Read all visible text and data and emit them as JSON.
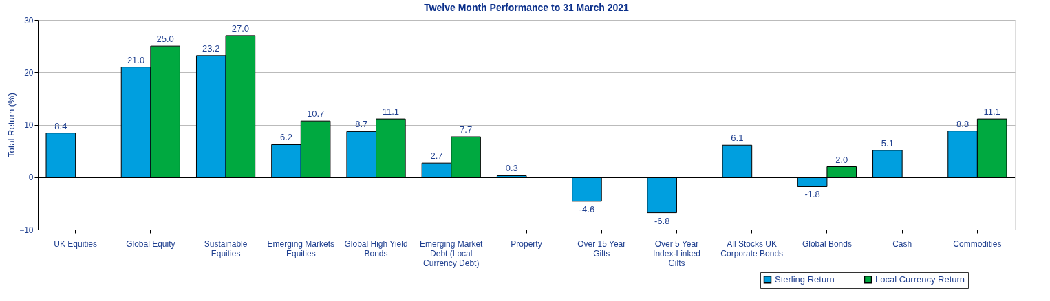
{
  "chart_data": {
    "type": "bar",
    "title": "Twelve Month Performance to 31 March 2021",
    "ylabel": "Total Return (%)",
    "categories": [
      "UK Equities",
      "Global Equity",
      "Sustainable Equities",
      "Emerging Markets Equities",
      "Global High Yield Bonds",
      "Emerging Market Debt (Local Currency Debt)",
      "Property",
      "Over 15 Year Gilts",
      "Over 5 Year Index-Linked Gilts",
      "All Stocks UK Corporate Bonds",
      "Global Bonds",
      "Cash",
      "Commodities"
    ],
    "series": [
      {
        "name": "Sterling Return",
        "color": "#009fdf",
        "values": [
          8.4,
          21.0,
          23.2,
          6.2,
          8.7,
          2.7,
          0.3,
          -4.6,
          -6.8,
          6.1,
          -1.8,
          5.1,
          8.8
        ],
        "value_labels": [
          "8.4",
          "21.0",
          "23.2",
          "6.2",
          "8.7",
          "2.7",
          "0.3",
          "-4.6",
          "-6.8",
          "6.1",
          "-1.8",
          "5.1",
          "8.8"
        ]
      },
      {
        "name": "Local Currency Return",
        "color": "#00a940",
        "values": [
          null,
          25.0,
          27.0,
          10.7,
          11.1,
          7.7,
          null,
          null,
          null,
          null,
          2.0,
          null,
          11.1
        ],
        "value_labels": [
          null,
          "25.0",
          "27.0",
          "10.7",
          "11.1",
          "7.7",
          null,
          null,
          null,
          null,
          "2.0",
          null,
          "11.1"
        ]
      }
    ],
    "ylim": [
      -10,
      30
    ],
    "yticks": [
      -10,
      0,
      10,
      20,
      30
    ],
    "grid": "y",
    "legend": "bottom right"
  }
}
